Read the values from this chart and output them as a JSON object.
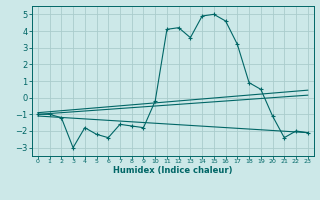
{
  "bg_color": "#cce8e8",
  "grid_color": "#aacccc",
  "line_color": "#006666",
  "xlabel": "Humidex (Indice chaleur)",
  "xlim": [
    -0.5,
    23.5
  ],
  "ylim": [
    -3.5,
    5.5
  ],
  "yticks": [
    -3,
    -2,
    -1,
    0,
    1,
    2,
    3,
    4,
    5
  ],
  "xticks": [
    0,
    1,
    2,
    3,
    4,
    5,
    6,
    7,
    8,
    9,
    10,
    11,
    12,
    13,
    14,
    15,
    16,
    17,
    18,
    19,
    20,
    21,
    22,
    23
  ],
  "main_x": [
    0,
    1,
    2,
    3,
    4,
    5,
    6,
    7,
    8,
    9,
    10,
    11,
    12,
    13,
    14,
    15,
    16,
    17,
    18,
    19,
    20,
    21,
    22,
    23
  ],
  "main_y": [
    -1.0,
    -1.0,
    -1.2,
    -3.0,
    -1.8,
    -2.2,
    -2.4,
    -1.6,
    -1.7,
    -1.8,
    -0.2,
    4.1,
    4.2,
    3.6,
    4.9,
    5.0,
    4.6,
    3.2,
    0.9,
    0.5,
    -1.1,
    -2.4,
    -2.0,
    -2.1
  ],
  "line1_x": [
    0,
    23
  ],
  "line1_y": [
    -0.9,
    0.45
  ],
  "line2_x": [
    0,
    23
  ],
  "line2_y": [
    -1.0,
    0.15
  ],
  "line3_x": [
    0,
    23
  ],
  "line3_y": [
    -1.1,
    -2.1
  ]
}
